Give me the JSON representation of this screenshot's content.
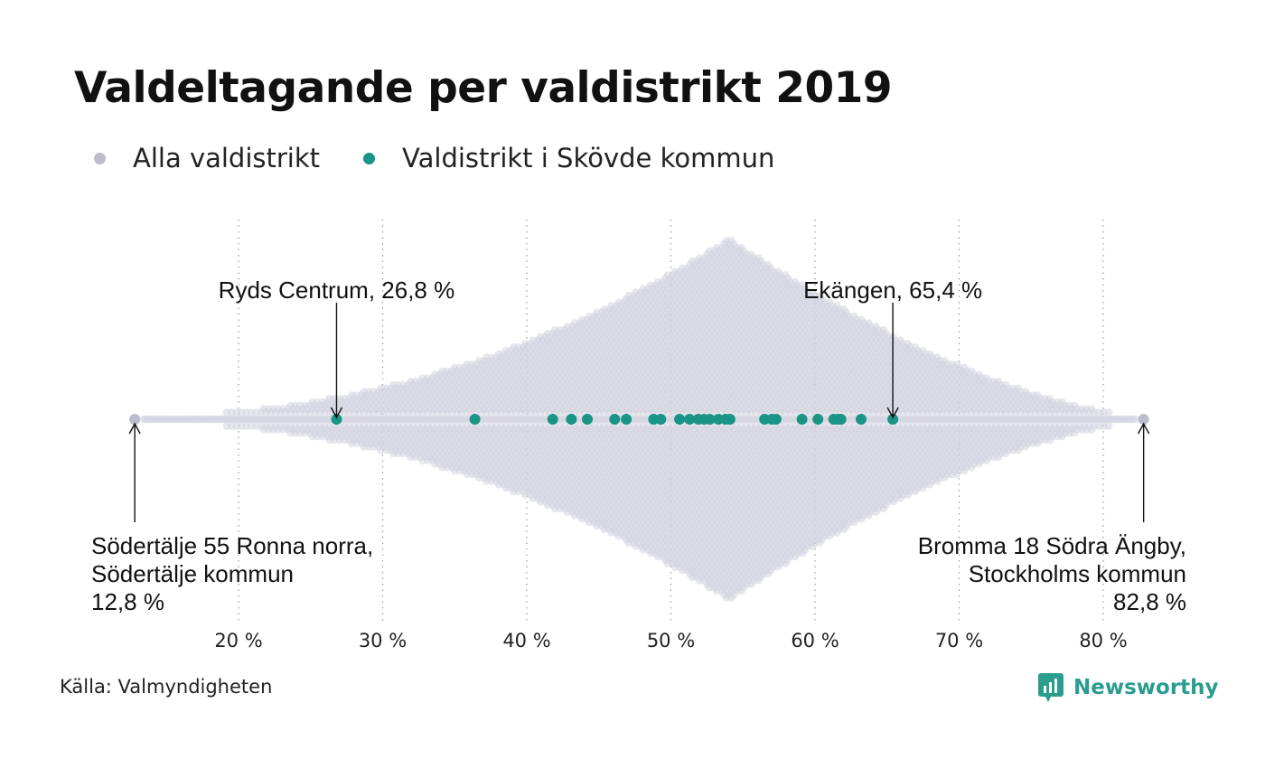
{
  "title": "Valdeltagande per valdistrikt 2019",
  "legend": [
    {
      "label": "Alla valdistrikt",
      "color": "#bcbccc"
    },
    {
      "label": "Valdistrikt i Skövde kommun",
      "color": "#1a9486"
    }
  ],
  "source": "Källa: Valmyndigheten",
  "brand": "Newsworthy",
  "chart_data": {
    "type": "scatter",
    "subtype": "beeswarm",
    "x_axis": {
      "ticks": [
        20,
        30,
        40,
        50,
        60,
        70,
        80
      ],
      "tick_labels": [
        "20 %",
        "30 %",
        "40 %",
        "50 %",
        "60 %",
        "70 %",
        "80 %"
      ],
      "range": [
        12,
        84
      ],
      "grid": true
    },
    "series": [
      {
        "name": "Alla valdistrikt",
        "color": "#bcbccc",
        "mode": "beeswarm-distribution",
        "min": 12.8,
        "max": 82.8,
        "peak": 54
      },
      {
        "name": "Valdistrikt i Skövde kommun",
        "color": "#1a9486",
        "values": [
          26.8,
          36.4,
          41.8,
          43.1,
          44.2,
          46.1,
          46.9,
          48.8,
          49.3,
          50.6,
          51.3,
          51.9,
          52.3,
          52.7,
          53.3,
          53.8,
          54.1,
          56.5,
          57.0,
          57.3,
          59.1,
          60.2,
          61.3,
          61.6,
          61.8,
          63.2,
          65.4
        ]
      }
    ],
    "annotations": [
      {
        "lines": [
          "Ryds Centrum, 26,8 %"
        ],
        "x": 26.8,
        "position": "above",
        "series": 1
      },
      {
        "lines": [
          "Ekängen, 65,4 %"
        ],
        "x": 65.4,
        "position": "above",
        "series": 1
      },
      {
        "lines": [
          "Södertälje 55 Ronna norra,",
          "Södertälje kommun",
          "12,8 %"
        ],
        "x": 12.8,
        "position": "below-left",
        "series": 0
      },
      {
        "lines": [
          "Bromma 18 Södra Ängby,",
          "Stockholms kommun",
          "82,8 %"
        ],
        "x": 82.8,
        "position": "below-right",
        "series": 0
      }
    ]
  }
}
